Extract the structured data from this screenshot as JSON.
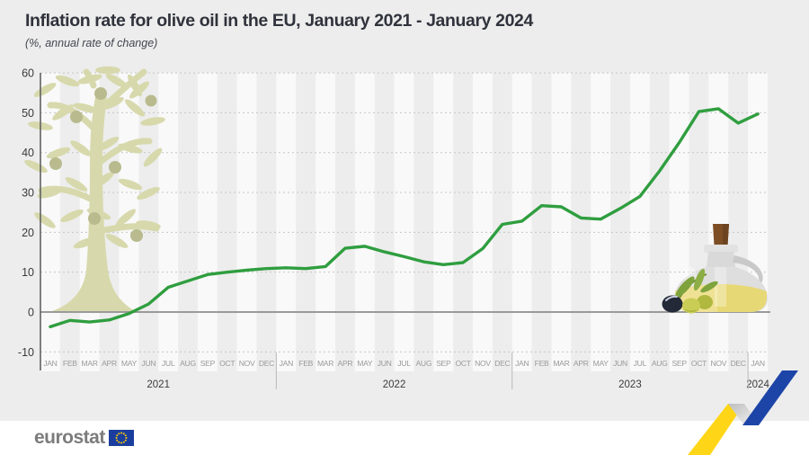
{
  "title": "Inflation rate for olive oil in the EU, January 2021 - January 2024",
  "subtitle": "(%, annual rate of change)",
  "footer": {
    "logo_text": "eurostat"
  },
  "colors": {
    "background": "#ededed",
    "stripe_light": "#f9f9f9",
    "line_green": "#2f9e3f",
    "zero_line": "#9a9a9a",
    "grid_dotted": "#c6c6c6",
    "axis_line": "#616161",
    "year_separator": "#b9b9b9",
    "title_text": "#30333c",
    "month_label": "#9a9a9a",
    "year_label": "#3b3b3b",
    "ytick_label": "#3a3a3a",
    "tree": "#d7d9ac",
    "tree_olive": "#b9bb8e",
    "ribbon_yellow": "#ffd617",
    "ribbon_blue": "#1d45a8",
    "eu_flag_blue": "#1b3e9e",
    "eu_star_gold": "#ffcc00"
  },
  "chart_data": {
    "type": "line",
    "title": "Inflation rate for olive oil in the EU, January 2021 - January 2024",
    "unit": "%, annual rate of change",
    "legend": "none",
    "grid": "horizontal-dotted",
    "ylim": [
      -10,
      60
    ],
    "yticks": [
      60,
      50,
      40,
      30,
      20,
      10,
      0,
      -10
    ],
    "months": [
      "JAN",
      "FEB",
      "MAR",
      "APR",
      "MAY",
      "JUN",
      "JUL",
      "AUG",
      "SEP",
      "OCT",
      "NOV",
      "DEC",
      "JAN",
      "FEB",
      "MAR",
      "APR",
      "MAY",
      "JUN",
      "JUL",
      "AUG",
      "SEP",
      "OCT",
      "NOV",
      "DEC",
      "JAN",
      "FEB",
      "MAR",
      "APR",
      "MAY",
      "JUN",
      "JUL",
      "AUG",
      "SEP",
      "OCT",
      "NOV",
      "DEC",
      "JAN"
    ],
    "years": [
      {
        "label": "2021",
        "start": 0,
        "end": 11
      },
      {
        "label": "2022",
        "start": 12,
        "end": 23
      },
      {
        "label": "2023",
        "start": 24,
        "end": 35
      },
      {
        "label": "2024",
        "start": 36,
        "end": 36
      }
    ],
    "values": [
      -3.7,
      -2.1,
      -2.5,
      -2.0,
      -0.4,
      2.0,
      6.2,
      7.8,
      9.4,
      10.0,
      10.5,
      10.9,
      11.1,
      10.9,
      11.4,
      16.0,
      16.5,
      15.1,
      13.9,
      12.6,
      11.9,
      12.4,
      15.9,
      22.0,
      22.8,
      26.7,
      26.4,
      23.6,
      23.3,
      26.0,
      29.0,
      35.4,
      42.5,
      50.3,
      51.0,
      47.4,
      49.7
    ]
  },
  "decorations": [
    "olive-tree-illustration",
    "olive-oil-jug-illustration",
    "olives-illustration",
    "trend-ribbon-graphic"
  ]
}
